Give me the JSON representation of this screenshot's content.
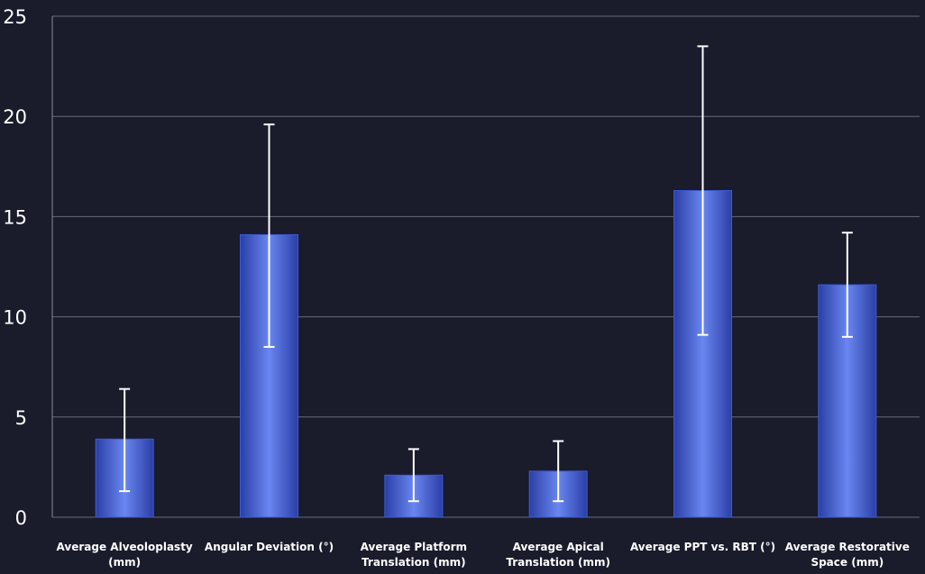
{
  "chart_data": {
    "type": "bar",
    "categories": [
      [
        "Average Alveoloplasty",
        "(mm)"
      ],
      [
        "Angular Deviation  (°)"
      ],
      [
        "Average Platform",
        "Translation (mm)"
      ],
      [
        "Average Apical",
        "Translation (mm)"
      ],
      [
        "Average PPT vs. RBT (°)"
      ],
      [
        "Average Restorative",
        "Space (mm)"
      ]
    ],
    "values": [
      3.9,
      14.1,
      2.1,
      2.3,
      16.3,
      11.6
    ],
    "error_bars": [
      {
        "low": 1.3,
        "high": 6.4
      },
      {
        "low": 8.5,
        "high": 19.6
      },
      {
        "low": 0.8,
        "high": 3.4
      },
      {
        "low": 0.8,
        "high": 3.8
      },
      {
        "low": 9.1,
        "high": 23.5
      },
      {
        "low": 9.0,
        "high": 14.2
      }
    ],
    "yticks": [
      0,
      5,
      10,
      15,
      20,
      25
    ],
    "ylim": [
      0,
      25
    ],
    "grid": true,
    "title": "",
    "xlabel": "",
    "ylabel": "",
    "colors": {
      "background": "#1a1b2b",
      "bar": "#3d5bd6",
      "bar_light": "#6a86f0",
      "bar_dark": "#2a3fa6",
      "error_bar": "#ffffff",
      "grid": "#8a8a9a"
    }
  }
}
